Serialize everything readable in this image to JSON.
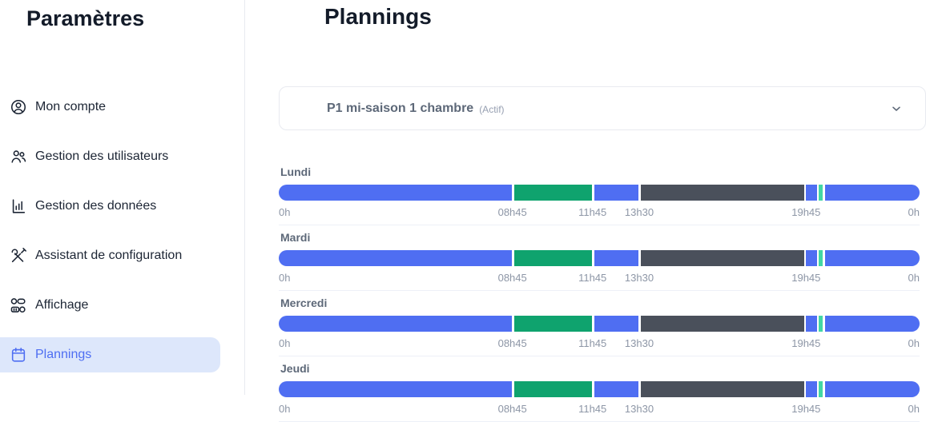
{
  "sidebar": {
    "title": "Paramètres",
    "items": [
      {
        "id": "mon-compte",
        "label": "Mon compte",
        "icon": "user-circle-icon",
        "active": false
      },
      {
        "id": "gestion-des-utilisateurs",
        "label": "Gestion des utilisateurs",
        "icon": "users-icon",
        "active": false
      },
      {
        "id": "gestion-des-donnees",
        "label": "Gestion des données",
        "icon": "bar-chart-icon",
        "active": false
      },
      {
        "id": "assistant-de-configuration",
        "label": "Assistant de configuration",
        "icon": "tools-icon",
        "active": false
      },
      {
        "id": "affichage",
        "label": "Affichage",
        "icon": "toggles-icon",
        "active": false
      },
      {
        "id": "plannings",
        "label": "Plannings",
        "icon": "calendar-icon",
        "active": true
      }
    ]
  },
  "main": {
    "title": "Plannings",
    "planning_selector": {
      "icon": "calendar-icon",
      "label": "P1 mi-saison 1 chambre",
      "status": "(Actif)"
    }
  },
  "colors": {
    "accent_blue": "#4f6ef2",
    "green": "#0fa36e",
    "mint": "#43d7a5",
    "dark_slate": "#4a505b",
    "active_item_bg": "#dde7fb"
  },
  "chart_data": {
    "type": "timeline-schedule",
    "title": "Plannings",
    "days": [
      "Lundi",
      "Mardi",
      "Mercredi",
      "Jeudi"
    ],
    "axis": {
      "start_label": "0h",
      "end_label": "0h",
      "total_hours": 24
    },
    "ticks": [
      {
        "label": "0h",
        "pct": 0,
        "align": "left"
      },
      {
        "label": "08h45",
        "pct": 36.46,
        "align": "center"
      },
      {
        "label": "11h45",
        "pct": 48.96,
        "align": "center"
      },
      {
        "label": "13h30",
        "pct": 56.25,
        "align": "center"
      },
      {
        "label": "19h45",
        "pct": 82.29,
        "align": "center"
      },
      {
        "label": "0h",
        "pct": 100,
        "align": "right"
      }
    ],
    "segments": [
      {
        "color": "#4f6ef2",
        "width_pct": 36.4
      },
      {
        "color": "#0fa36e",
        "width_pct": 12.2
      },
      {
        "color": "#4f6ef2",
        "width_pct": 6.95
      },
      {
        "color": "#4a505b",
        "width_pct": 25.5
      },
      {
        "color": "#4f6ef2",
        "width_pct": 1.69
      },
      {
        "color": "#43d7a5",
        "width_pct": 0.63
      },
      {
        "color": "#4f6ef2",
        "width_pct": null
      }
    ]
  }
}
